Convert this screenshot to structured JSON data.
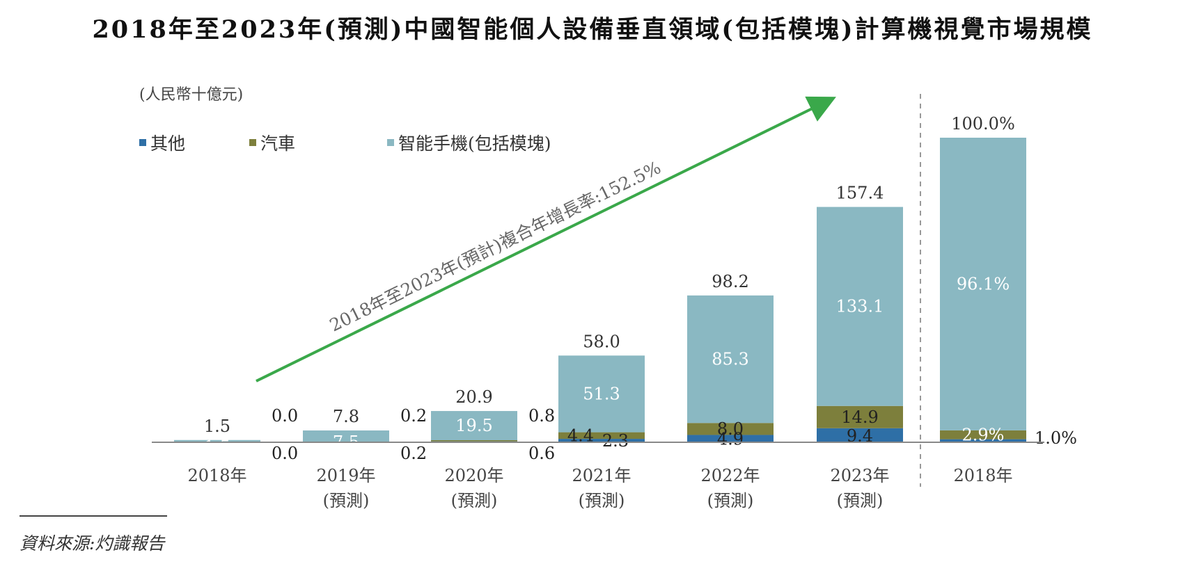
{
  "chart_data": {
    "type": "bar",
    "stacked": true,
    "title": "2018年至2023年(預測)中國智能個人設備垂直領域(包括模塊)計算機視覺市場規模",
    "unit_label": "(人民幣十億元)",
    "categories": [
      {
        "line1": "2018年",
        "line2": ""
      },
      {
        "line1": "2019年",
        "line2": "(預測)"
      },
      {
        "line1": "2020年",
        "line2": "(預測)"
      },
      {
        "line1": "2021年",
        "line2": "(預測)"
      },
      {
        "line1": "2022年",
        "line2": "(預測)"
      },
      {
        "line1": "2023年",
        "line2": "(預測)"
      }
    ],
    "series": [
      {
        "name": "其他",
        "color": "#2e6fa6",
        "values": [
          0.0,
          0.2,
          0.6,
          2.3,
          4.9,
          9.4
        ],
        "labels": [
          "0.0",
          "0.2",
          "0.6",
          "2.3",
          "4.9",
          "9.4"
        ]
      },
      {
        "name": "汽車",
        "color": "#7d7f3c",
        "values": [
          0.0,
          0.2,
          0.8,
          4.4,
          8.0,
          14.9
        ],
        "labels": [
          "0.0",
          "0.2",
          "0.8",
          "4.4",
          "8.0",
          "14.9"
        ]
      },
      {
        "name": "智能手機(包括模塊)",
        "color": "#8ab8c2",
        "values": [
          1.5,
          7.5,
          19.5,
          51.3,
          85.3,
          133.1
        ],
        "labels": [
          "1.5",
          "7.5",
          "19.5",
          "51.3",
          "85.3",
          "133.1"
        ]
      }
    ],
    "totals": [
      "1.5",
      "7.8",
      "20.9",
      "58.0",
      "98.2",
      "157.4"
    ],
    "cagr_annotation": "2018年至2023年(預計)複合年增長率:152.5%",
    "share_bar": {
      "category": "2018年",
      "total_label": "100.0%",
      "values": [
        1.0,
        2.9,
        96.1
      ],
      "labels": [
        "1.0%",
        "2.9%",
        "96.1%"
      ]
    },
    "source": "資料來源:灼識報告"
  }
}
